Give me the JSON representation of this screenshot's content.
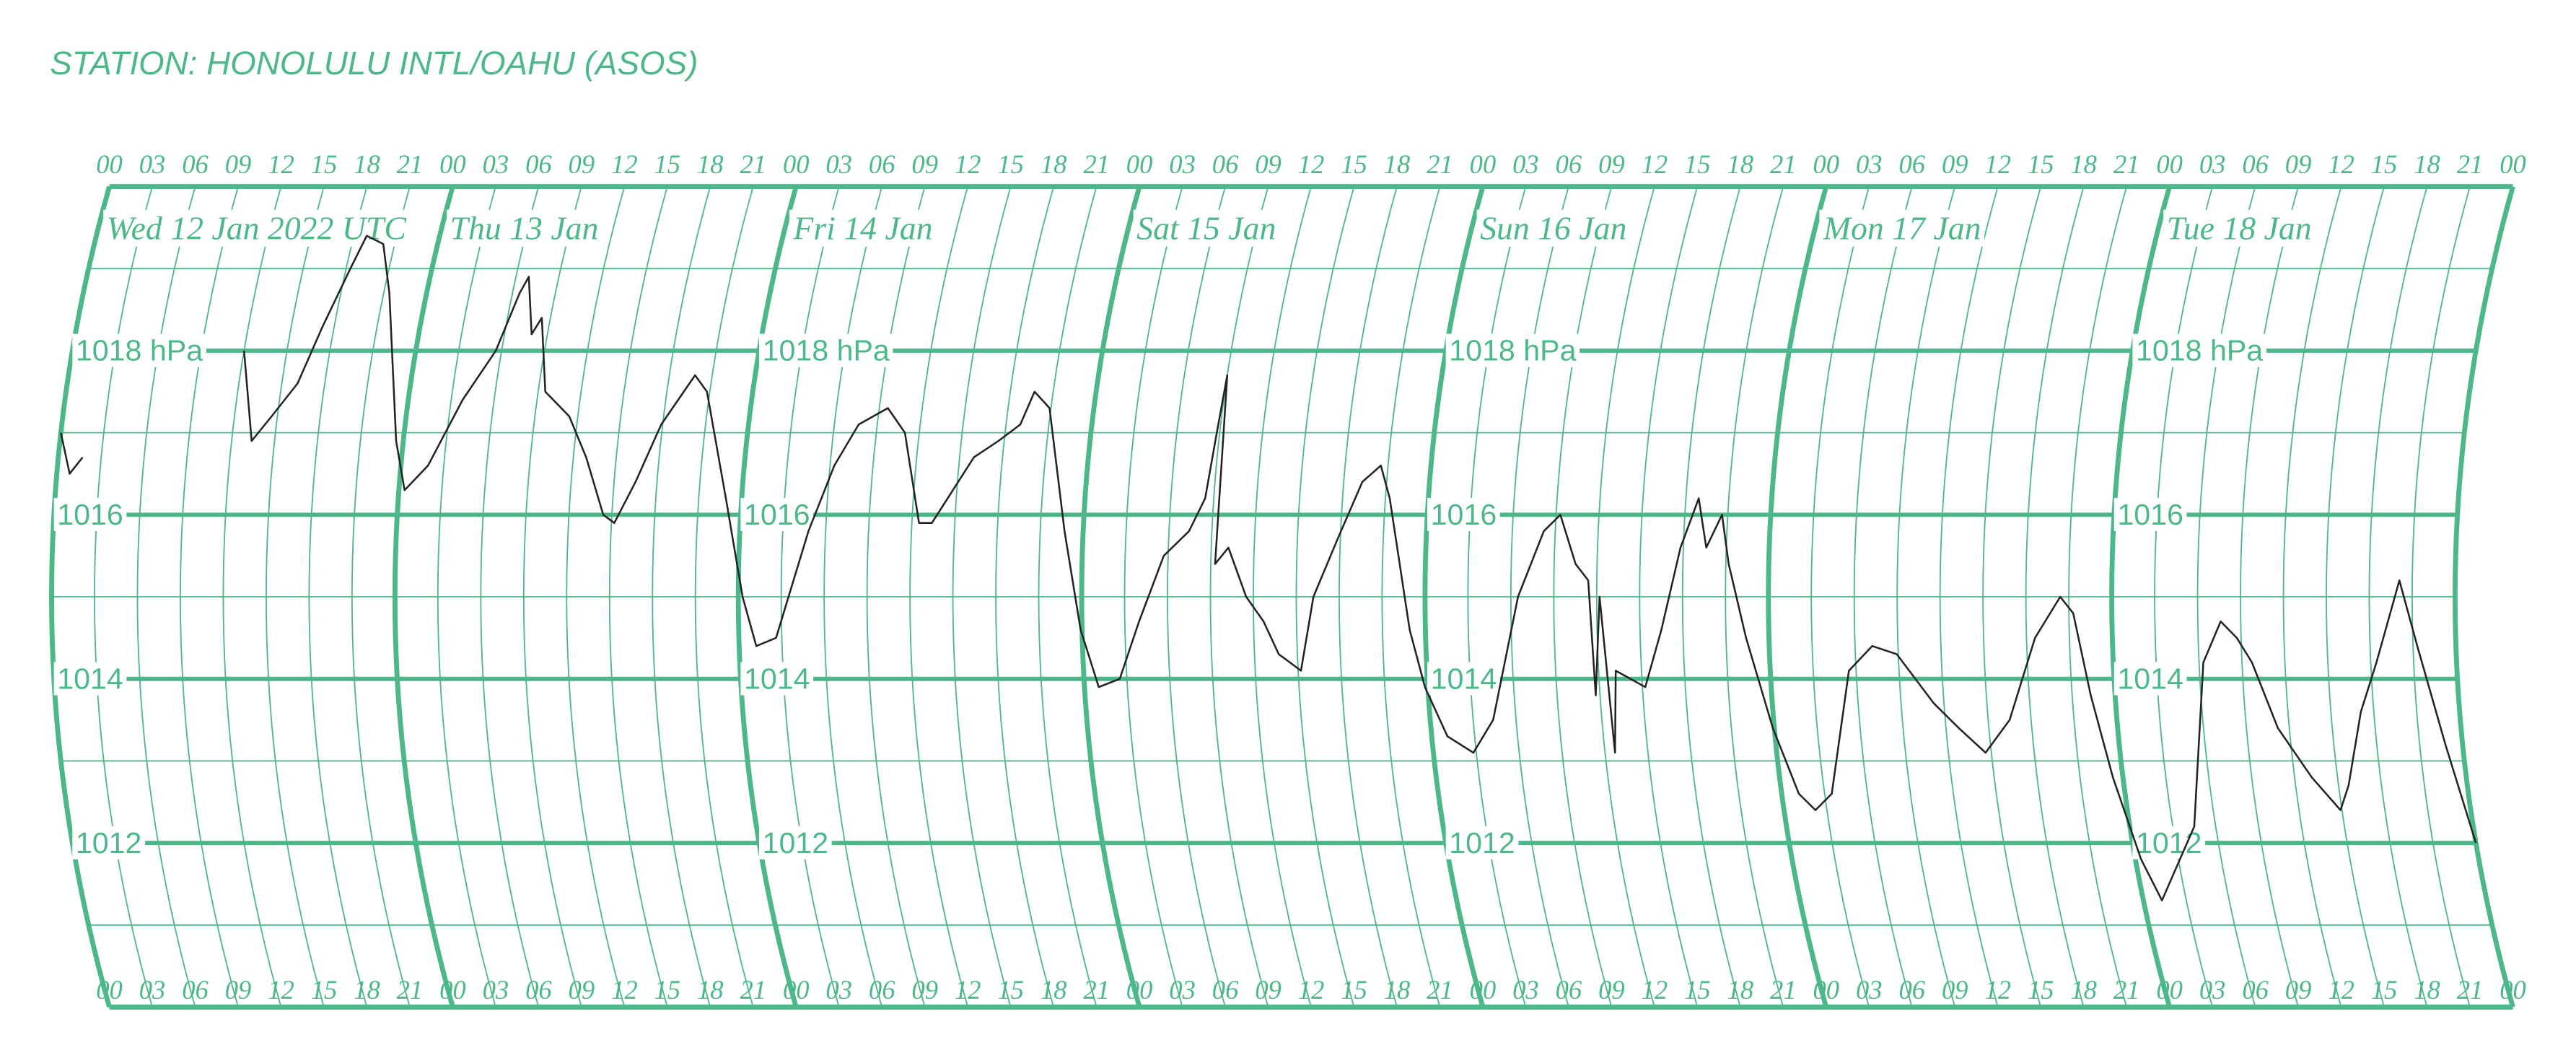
{
  "chart_data": {
    "type": "line",
    "title": "STATION: HONOLULU INTL/OAHU (ASOS)",
    "day_labels": [
      "Wed 12 Jan 2022 UTC",
      "Thu 13 Jan",
      "Fri 14 Jan",
      "Sat 15 Jan",
      "Sun 16 Jan",
      "Mon 17 Jan",
      "Tue 18 Jan"
    ],
    "xlim": [
      0,
      168
    ],
    "ylim": [
      1010,
      1020
    ],
    "xticks": [
      {
        "value": 0,
        "label": "00"
      },
      {
        "value": 3,
        "label": "03"
      },
      {
        "value": 6,
        "label": "06"
      },
      {
        "value": 9,
        "label": "09"
      },
      12,
      15,
      18,
      21,
      {
        "value": 24,
        "label": "00"
      },
      {
        "value": 27,
        "label": "03"
      },
      {
        "value": 30,
        "label": "06"
      },
      {
        "value": 33,
        "label": "09"
      },
      {
        "value": 36,
        "label": "12"
      },
      {
        "value": 39,
        "label": "15"
      },
      {
        "value": 42,
        "label": "18"
      },
      {
        "value": 45,
        "label": "21"
      },
      {
        "value": 48,
        "label": "00"
      },
      {
        "value": 51,
        "label": "03"
      },
      {
        "value": 54,
        "label": "06"
      },
      {
        "value": 57,
        "label": "09"
      },
      {
        "value": 60,
        "label": "12"
      },
      {
        "value": 63,
        "label": "15"
      },
      {
        "value": 66,
        "label": "18"
      },
      {
        "value": 69,
        "label": "21"
      },
      {
        "value": 72,
        "label": "00"
      },
      {
        "value": 75,
        "label": "03"
      },
      {
        "value": 78,
        "label": "06"
      },
      {
        "value": 81,
        "label": "09"
      },
      {
        "value": 84,
        "label": "12"
      },
      {
        "value": 87,
        "label": "15"
      },
      {
        "value": 90,
        "label": "18"
      },
      {
        "value": 93,
        "label": "21"
      },
      {
        "value": 96,
        "label": "00"
      },
      {
        "value": 99,
        "label": "03"
      },
      {
        "value": 102,
        "label": "06"
      },
      {
        "value": 105,
        "label": "09"
      },
      {
        "value": 108,
        "label": "12"
      },
      {
        "value": 111,
        "label": "15"
      },
      {
        "value": 114,
        "label": "18"
      },
      {
        "value": 117,
        "label": "21"
      },
      {
        "value": 120,
        "label": "00"
      },
      {
        "value": 123,
        "label": "03"
      },
      {
        "value": 126,
        "label": "06"
      },
      {
        "value": 129,
        "label": "09"
      },
      {
        "value": 132,
        "label": "12"
      },
      {
        "value": 135,
        "label": "15"
      },
      {
        "value": 138,
        "label": "18"
      },
      {
        "value": 141,
        "label": "21"
      },
      {
        "value": 144,
        "label": "00"
      },
      {
        "value": 147,
        "label": "03"
      },
      {
        "value": 150,
        "label": "06"
      },
      {
        "value": 153,
        "label": "09"
      },
      {
        "value": 156,
        "label": "12"
      },
      {
        "value": 159,
        "label": "15"
      },
      {
        "value": 162,
        "label": "18"
      },
      {
        "value": 165,
        "label": "21"
      },
      {
        "value": 168,
        "label": "00"
      }
    ],
    "yticks": [
      1012,
      1014,
      1016,
      {
        "value": 1018,
        "label": "1018 hPa"
      }
    ],
    "yminorticks": [
      1011,
      1013,
      1015,
      1017,
      1019
    ],
    "grid_color": "#4cb88a",
    "color": "#222222",
    "x": [
      0,
      0.9,
      1.7,
      7,
      12.0,
      13.4,
      14.6,
      16.1,
      17.2,
      18.3,
      18.9,
      20.2,
      21.4,
      23.5,
      24.4,
      25.9,
      27.8,
      29.6,
      30.5,
      30.9,
      31.9,
      32.4,
      33.5,
      35.4,
      36.9,
      38.4,
      39.2,
      40.5,
      41.9,
      43.8,
      44.8,
      46.9,
      48.3,
      49.2,
      50.6,
      52.8,
      54.3,
      55.7,
      57.6,
      59.0,
      60.5,
      61.4,
      62.4,
      64.0,
      65.6,
      67.0,
      67.7,
      68.9,
      70.7,
      71.9,
      73.0,
      74.5,
      76.0,
      77.7,
      79.4,
      80.4,
      80.8,
      81.0,
      81.3,
      82.2,
      83.5,
      84.7,
      85.7,
      87.2,
      88.2,
      89.8,
      91.3,
      92.5,
      93.3,
      94.9,
      95.8,
      97.1,
      98.8,
      100.4,
      102.5,
      104.2,
      105.3,
      106.5,
      107.4,
      107.7,
      108.2,
      108.7,
      109.2,
      111.2,
      112.5,
      113.8,
      114.9,
      115.6,
      116.6,
      117.2,
      118.4,
      119.9,
      121.2,
      122.2,
      123.5,
      125.5,
      127.2,
      128.9,
      131.3,
      132.9,
      134.6,
      136.5,
      138.6,
      140.4,
      141.3,
      142.3,
      143.3,
      144.4,
      145.3,
      148.5,
      150.3,
      151.6,
      152.7,
      153.7,
      155.2,
      157.2,
      158.9,
      159.7,
      161.1,
      162.4,
      164.1,
      165.3,
      166.8,
      168.0
    ],
    "values": [
      1017.0,
      1016.5,
      1016.7,
      null,
      1018.0,
      1016.9,
      1017.2,
      1017.6,
      1018.3,
      1019.0,
      1019.4,
      1019.3,
      1018.7,
      1016.9,
      1016.3,
      1016.6,
      1017.4,
      1018.0,
      1018.7,
      1018.9,
      1018.2,
      1018.4,
      1017.5,
      1017.2,
      1016.7,
      1016.0,
      1015.9,
      1016.4,
      1017.1,
      1017.7,
      1017.5,
      1016.2,
      1015.0,
      1014.4,
      1014.5,
      1015.8,
      1016.6,
      1017.1,
      1017.3,
      1017.0,
      1015.9,
      1015.9,
      1016.2,
      1016.7,
      1016.9,
      1017.1,
      1017.5,
      1017.3,
      1015.8,
      1014.6,
      1013.9,
      1014.0,
      1014.7,
      1015.5,
      1015.8,
      1016.2,
      1017.0,
      1017.7,
      1015.4,
      1015.6,
      1015.0,
      1014.7,
      1014.3,
      1014.1,
      1015.0,
      1015.7,
      1016.4,
      1016.6,
      1016.2,
      1014.6,
      1013.9,
      1013.3,
      1013.1,
      1013.5,
      1015.0,
      1015.8,
      1016.0,
      1015.4,
      1015.2,
      1013.8,
      1015.0,
      1013.1,
      1014.1,
      1013.9,
      1014.6,
      1015.6,
      1016.2,
      1015.6,
      1016.0,
      1015.4,
      1014.5,
      1013.4,
      1012.6,
      1012.4,
      1012.6,
      1014.1,
      1014.4,
      1014.3,
      1013.7,
      1013.4,
      1013.1,
      1013.5,
      1014.5,
      1015.0,
      1014.8,
      1013.8,
      1012.8,
      1011.8,
      1011.3,
      1012.2,
      1014.2,
      1014.7,
      1014.5,
      1014.2,
      1013.4,
      1012.8,
      1012.4,
      1012.7,
      1013.6,
      1014.2,
      1015.2,
      1014.4,
      1013.2,
      1012.0
    ]
  }
}
